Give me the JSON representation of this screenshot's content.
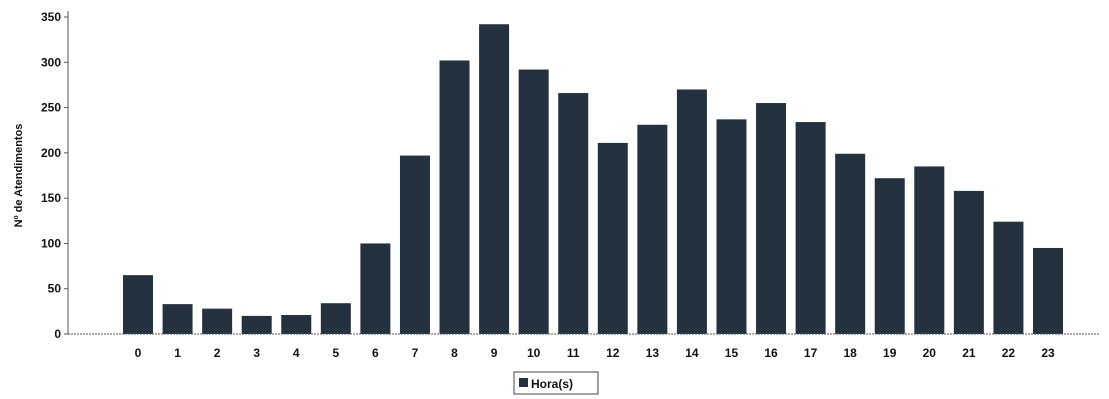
{
  "chart_data": {
    "type": "bar",
    "title": "",
    "xlabel": "",
    "ylabel": "Nº de Atendimentos",
    "categories": [
      "0",
      "1",
      "2",
      "3",
      "4",
      "5",
      "6",
      "7",
      "8",
      "9",
      "10",
      "11",
      "12",
      "13",
      "14",
      "15",
      "16",
      "17",
      "18",
      "19",
      "20",
      "21",
      "22",
      "23"
    ],
    "series": [
      {
        "name": "Hora(s)",
        "values": [
          65,
          33,
          28,
          20,
          21,
          34,
          100,
          197,
          302,
          342,
          292,
          266,
          211,
          231,
          270,
          237,
          255,
          234,
          199,
          172,
          185,
          158,
          124,
          95
        ],
        "color": "#24313f"
      }
    ],
    "ylim": [
      0,
      350
    ],
    "yticks": [
      0,
      50,
      100,
      150,
      200,
      250,
      300,
      350
    ],
    "grid": false,
    "legend_position": "bottom-center"
  }
}
